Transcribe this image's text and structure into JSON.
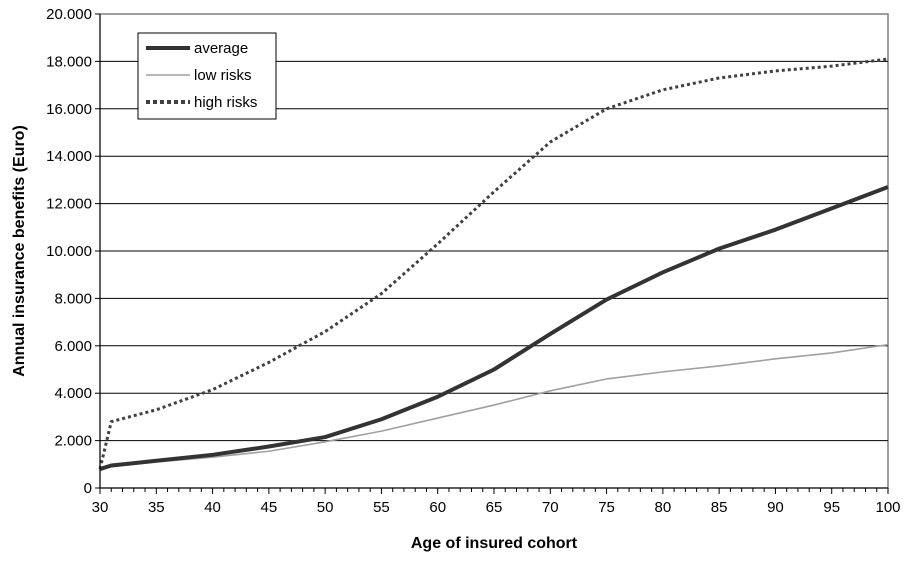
{
  "chart_data": {
    "type": "line",
    "xlabel": "Age of insured cohort",
    "ylabel": "Annual insurance benefits (Euro)",
    "xlim": [
      30,
      100
    ],
    "ylim": [
      0,
      20000
    ],
    "x_ticks": [
      "30",
      "35",
      "40",
      "45",
      "50",
      "55",
      "60",
      "65",
      "70",
      "75",
      "80",
      "85",
      "90",
      "95",
      "100"
    ],
    "y_ticks": [
      "0",
      "2.000",
      "4.000",
      "6.000",
      "8.000",
      "10.000",
      "12.000",
      "14.000",
      "16.000",
      "18.000",
      "20.000"
    ],
    "grid": "horizontal",
    "legend_position": "top-left",
    "x": [
      30,
      31,
      35,
      40,
      45,
      50,
      55,
      60,
      65,
      70,
      75,
      80,
      85,
      90,
      95,
      100
    ],
    "series": [
      {
        "name": "average",
        "color": "#333333",
        "style": "solid-thick",
        "values": [
          800,
          950,
          1150,
          1400,
          1750,
          2150,
          2900,
          3850,
          5000,
          6500,
          7950,
          9100,
          10100,
          10900,
          11800,
          12700
        ]
      },
      {
        "name": "low risks",
        "color": "#a0a0a0",
        "style": "solid-thin",
        "values": [
          800,
          900,
          1100,
          1300,
          1550,
          1950,
          2400,
          2950,
          3500,
          4100,
          4600,
          4900,
          5150,
          5450,
          5700,
          6050
        ]
      },
      {
        "name": "high risks",
        "color": "#404040",
        "style": "dotted",
        "values": [
          800,
          2800,
          3300,
          4150,
          5300,
          6600,
          8200,
          10300,
          12500,
          14600,
          16000,
          16800,
          17300,
          17600,
          17800,
          18100
        ]
      }
    ]
  }
}
